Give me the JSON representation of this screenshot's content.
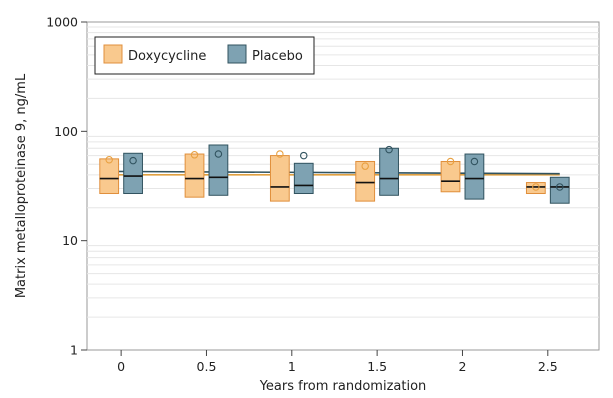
{
  "chart_data": {
    "type": "box",
    "xlabel": "Years from randomization",
    "ylabel": "Matrix metalloproteinase 9, ng/mL",
    "y_scale": "log",
    "ylim": [
      1,
      1000
    ],
    "xlim": [
      -0.2,
      2.8
    ],
    "x_ticks": [
      0,
      0.5,
      1,
      1.5,
      2,
      2.5
    ],
    "x_tick_labels": [
      "0",
      "0.5",
      "1",
      "1.5",
      "2",
      "2.5"
    ],
    "y_ticks": [
      1,
      10,
      100,
      1000
    ],
    "y_tick_labels": [
      "1",
      "10",
      "100",
      "1000"
    ],
    "legend_position": "top-left",
    "series": [
      {
        "name": "Doxycycline",
        "color": "#f9c98e",
        "edge_color": "#e08f3c",
        "trend_color": "#e0a040",
        "trend": [
          [
            0,
            40
          ],
          [
            2.5,
            40
          ]
        ],
        "boxes": [
          {
            "x": 0,
            "q1": 27,
            "median": 37,
            "q3": 56,
            "mean": 55
          },
          {
            "x": 0.5,
            "q1": 25,
            "median": 37,
            "q3": 62,
            "mean": 61
          },
          {
            "x": 1,
            "q1": 23,
            "median": 31,
            "q3": 60,
            "mean": 62
          },
          {
            "x": 1.5,
            "q1": 23,
            "median": 34,
            "q3": 53,
            "mean": 48
          },
          {
            "x": 2,
            "q1": 28,
            "median": 35,
            "q3": 53,
            "mean": 53
          },
          {
            "x": 2.5,
            "q1": 27,
            "median": 31,
            "q3": 34,
            "mean": 31
          }
        ]
      },
      {
        "name": "Placebo",
        "color": "#7ea2b2",
        "edge_color": "#31535f",
        "trend_color": "#31535f",
        "trend": [
          [
            0,
            43
          ],
          [
            2.5,
            41
          ]
        ],
        "boxes": [
          {
            "x": 0,
            "q1": 27,
            "median": 39,
            "q3": 63,
            "mean": 54
          },
          {
            "x": 0.5,
            "q1": 26,
            "median": 38,
            "q3": 75,
            "mean": 62
          },
          {
            "x": 1,
            "q1": 27,
            "median": 32,
            "q3": 51,
            "mean": 60
          },
          {
            "x": 1.5,
            "q1": 26,
            "median": 37,
            "q3": 70,
            "mean": 68
          },
          {
            "x": 2,
            "q1": 24,
            "median": 37,
            "q3": 62,
            "mean": 53
          },
          {
            "x": 2.5,
            "q1": 22,
            "median": 31,
            "q3": 38,
            "mean": 31
          }
        ]
      }
    ]
  }
}
